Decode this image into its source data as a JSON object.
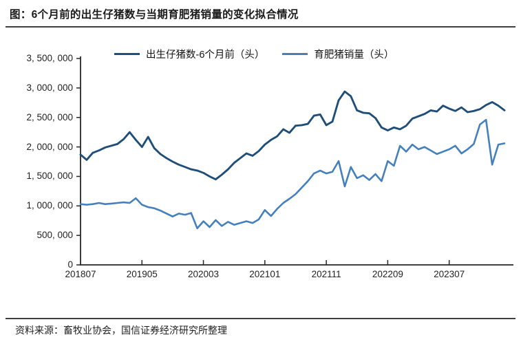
{
  "page": {
    "title": "图：6个月前的出生仔猪数与当期育肥猪销量的变化拟合情况",
    "source": "资料来源：畜牧业协会，国信证券经济研究所整理"
  },
  "colors": {
    "series1": "#1f4e79",
    "series2": "#4380bd",
    "axis": "#262626",
    "rule": "#3f3f3f",
    "text": "#1f1f1f"
  },
  "chart_data": {
    "type": "line",
    "title": "",
    "xlabel": "",
    "ylabel": "",
    "ylim": [
      0,
      3500000
    ],
    "grid": "off",
    "legend_position": "top",
    "x": [
      "201807",
      "201808",
      "201809",
      "201810",
      "201811",
      "201812",
      "201901",
      "201902",
      "201903",
      "201904",
      "201905",
      "201906",
      "201907",
      "201908",
      "201909",
      "201910",
      "201911",
      "201912",
      "202001",
      "202002",
      "202003",
      "202004",
      "202005",
      "202006",
      "202007",
      "202008",
      "202009",
      "202010",
      "202011",
      "202012",
      "202101",
      "202102",
      "202103",
      "202104",
      "202105",
      "202106",
      "202107",
      "202108",
      "202109",
      "202110",
      "202111",
      "202112",
      "202201",
      "202202",
      "202203",
      "202204",
      "202205",
      "202206",
      "202207",
      "202208",
      "202209",
      "202210",
      "202211",
      "202212",
      "202301",
      "202302",
      "202303",
      "202304",
      "202305",
      "202306",
      "202307",
      "202308",
      "202309",
      "202310",
      "202311",
      "202312",
      "202401",
      "202402",
      "202403",
      "202404"
    ],
    "x_tick_labels": [
      "201807",
      "201905",
      "202003",
      "202101",
      "202111",
      "202209",
      "202307"
    ],
    "y_ticks": [
      3500000,
      3000000,
      2500000,
      2000000,
      1500000,
      1000000,
      500000,
      0
    ],
    "y_tick_labels": [
      "3, 500, 000",
      "3, 000, 000",
      "2, 500, 000",
      "2, 000, 000",
      "1, 500, 000",
      "1, 000, 000",
      "500, 000",
      "0"
    ],
    "series": [
      {
        "name": "出生仔猪数-6个月前（头）",
        "color": "#1f4e79",
        "values": [
          1870000,
          1780000,
          1900000,
          1940000,
          1990000,
          2020000,
          2050000,
          2130000,
          2250000,
          2120000,
          2000000,
          2170000,
          1980000,
          1880000,
          1810000,
          1750000,
          1700000,
          1660000,
          1620000,
          1600000,
          1560000,
          1500000,
          1450000,
          1530000,
          1620000,
          1730000,
          1810000,
          1890000,
          1850000,
          1930000,
          2040000,
          2120000,
          2180000,
          2300000,
          2240000,
          2360000,
          2370000,
          2390000,
          2530000,
          2550000,
          2370000,
          2430000,
          2790000,
          2940000,
          2860000,
          2620000,
          2580000,
          2570000,
          2490000,
          2330000,
          2280000,
          2330000,
          2300000,
          2360000,
          2480000,
          2520000,
          2560000,
          2620000,
          2600000,
          2700000,
          2650000,
          2610000,
          2670000,
          2590000,
          2610000,
          2640000,
          2710000,
          2760000,
          2700000,
          2620000
        ]
      },
      {
        "name": "育肥猪销量（头）",
        "color": "#4380bd",
        "values": [
          1030000,
          1020000,
          1030000,
          1050000,
          1030000,
          1040000,
          1050000,
          1060000,
          1050000,
          1130000,
          1020000,
          980000,
          960000,
          920000,
          870000,
          820000,
          870000,
          850000,
          880000,
          620000,
          740000,
          640000,
          760000,
          660000,
          730000,
          680000,
          710000,
          740000,
          710000,
          770000,
          930000,
          830000,
          950000,
          1050000,
          1120000,
          1200000,
          1310000,
          1420000,
          1550000,
          1600000,
          1550000,
          1580000,
          1760000,
          1330000,
          1660000,
          1470000,
          1520000,
          1440000,
          1540000,
          1420000,
          1760000,
          1680000,
          2020000,
          1920000,
          2040000,
          1960000,
          2000000,
          1940000,
          1880000,
          1920000,
          1960000,
          2020000,
          1890000,
          1960000,
          2050000,
          2380000,
          2460000,
          1700000,
          2040000,
          2060000
        ]
      }
    ]
  }
}
